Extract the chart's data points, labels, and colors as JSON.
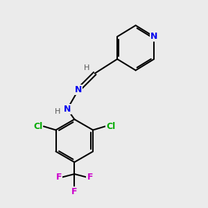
{
  "bg_color": "#ebebeb",
  "bond_color": "#000000",
  "bond_width": 1.5,
  "atom_colors": {
    "N": "#0000ee",
    "Cl": "#00aa00",
    "F": "#cc00cc",
    "H": "#555555",
    "C": "#000000"
  },
  "font_size": 9,
  "font_size_h": 8
}
